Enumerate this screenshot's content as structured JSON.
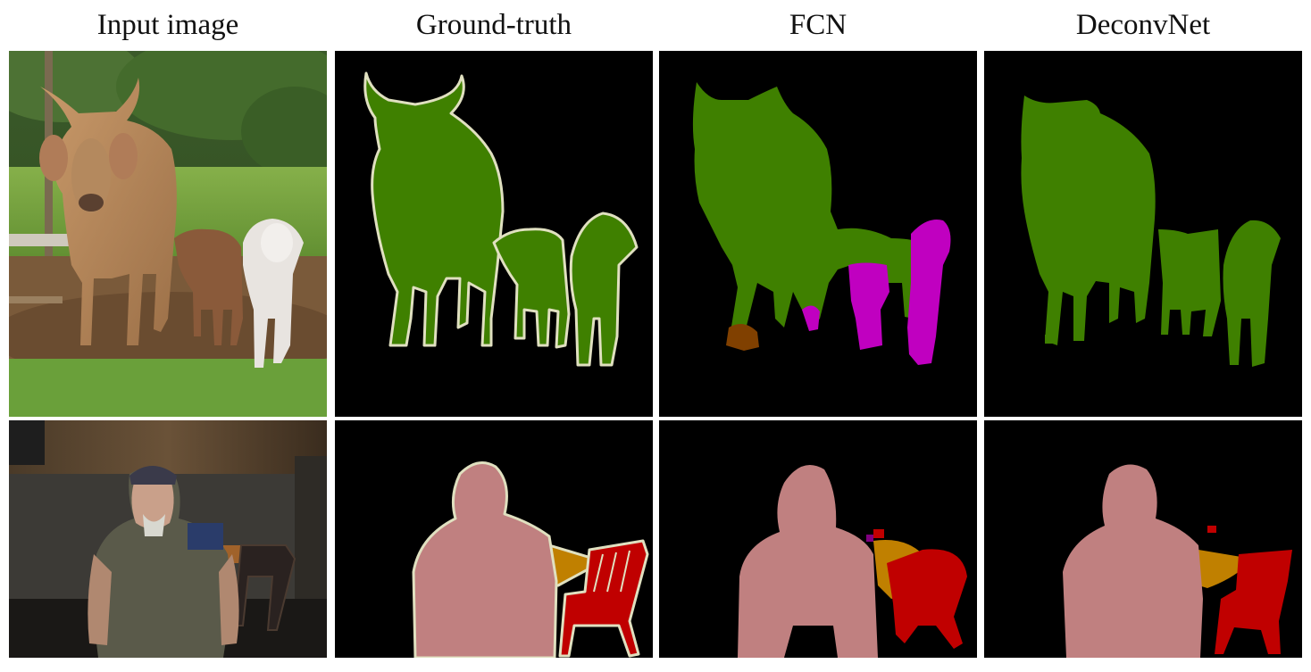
{
  "columns": [
    {
      "title": "Input image"
    },
    {
      "title": "Ground-truth"
    },
    {
      "title": "FCN"
    },
    {
      "title": "DeconvNet"
    }
  ],
  "rows": [
    {
      "subject": "cows",
      "panels": [
        "photo",
        "segmentation",
        "segmentation",
        "segmentation"
      ]
    },
    {
      "subject": "person-chair",
      "panels": [
        "photo",
        "segmentation",
        "segmentation",
        "segmentation"
      ]
    }
  ],
  "class_colors": {
    "cow": "#3f8000",
    "person": "#c08080",
    "chair": "#c00000",
    "dining_table": "#c08000",
    "horse": "#c000c0",
    "dog": "#804000",
    "boundary": "#e0e0c0",
    "background": "#000000"
  }
}
